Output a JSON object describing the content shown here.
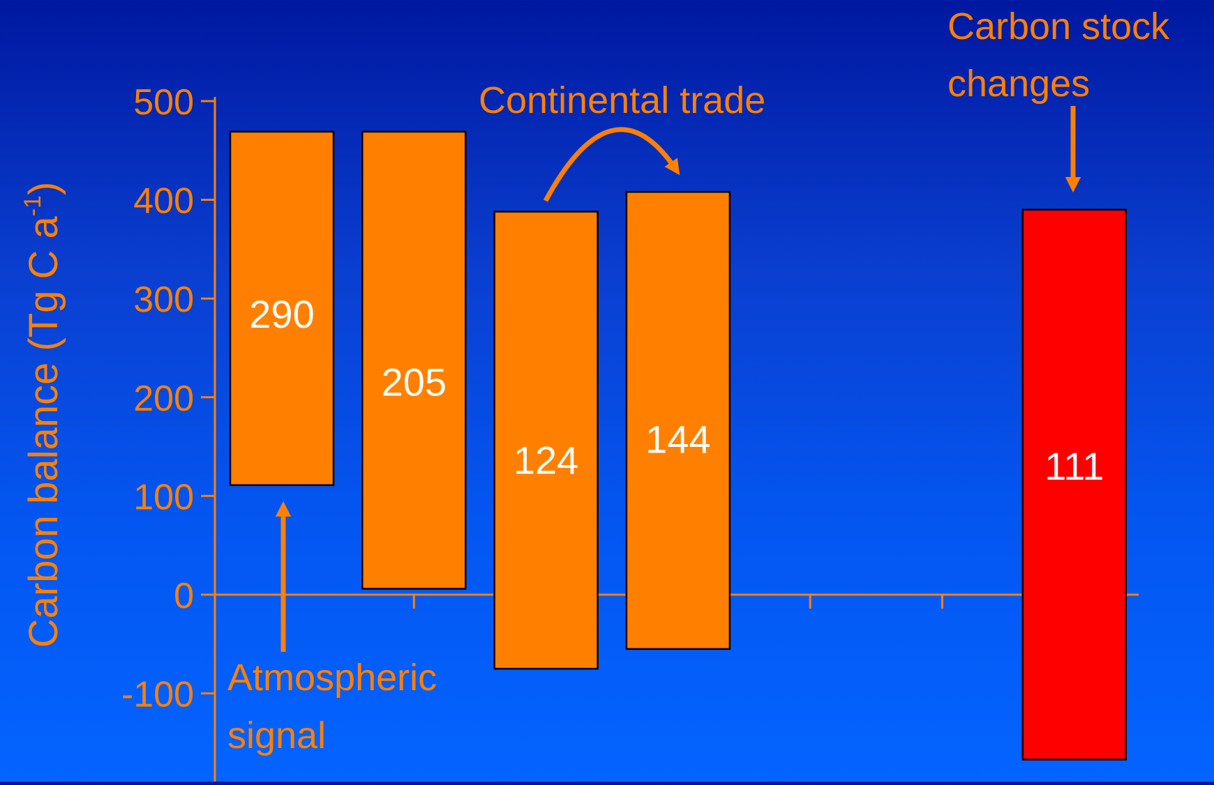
{
  "colors": {
    "axis": "#ff8000",
    "label_text": "#ff8000",
    "value_text": "#ffffff",
    "bar_border": "#000000"
  },
  "chart_data": {
    "type": "bar",
    "ylabel": "Carbon balance (Tg C a",
    "ylabel_superscript": "-1",
    "ylabel_close": ")",
    "ylim": [
      -170,
      500
    ],
    "yticks": [
      500,
      400,
      300,
      200,
      100,
      0,
      -100
    ],
    "ytick_labels": [
      "500",
      "400",
      "300",
      "200",
      "100",
      "0",
      "-100"
    ],
    "x_slots": 7,
    "grid": false,
    "bars": [
      {
        "slot": 0,
        "low": 111,
        "high": 469,
        "label": "290",
        "label_y": 284,
        "color": "#ff8000"
      },
      {
        "slot": 1,
        "low": 6,
        "high": 469,
        "label": "205",
        "label_y": 215,
        "color": "#ff8000"
      },
      {
        "slot": 2,
        "low": -75,
        "high": 388,
        "label": "124",
        "label_y": 136,
        "color": "#ff8000"
      },
      {
        "slot": 3,
        "low": -55,
        "high": 408,
        "label": "144",
        "label_y": 157,
        "color": "#ff8000"
      },
      {
        "slot": 6,
        "low": -167,
        "high": 390,
        "label": "111",
        "label_y": 130,
        "color": "#ff0000"
      }
    ],
    "annotations": {
      "atmospheric": [
        "Atmospheric",
        "signal"
      ],
      "continental": "Continental trade",
      "stock": [
        "Carbon stock",
        "changes"
      ]
    }
  }
}
